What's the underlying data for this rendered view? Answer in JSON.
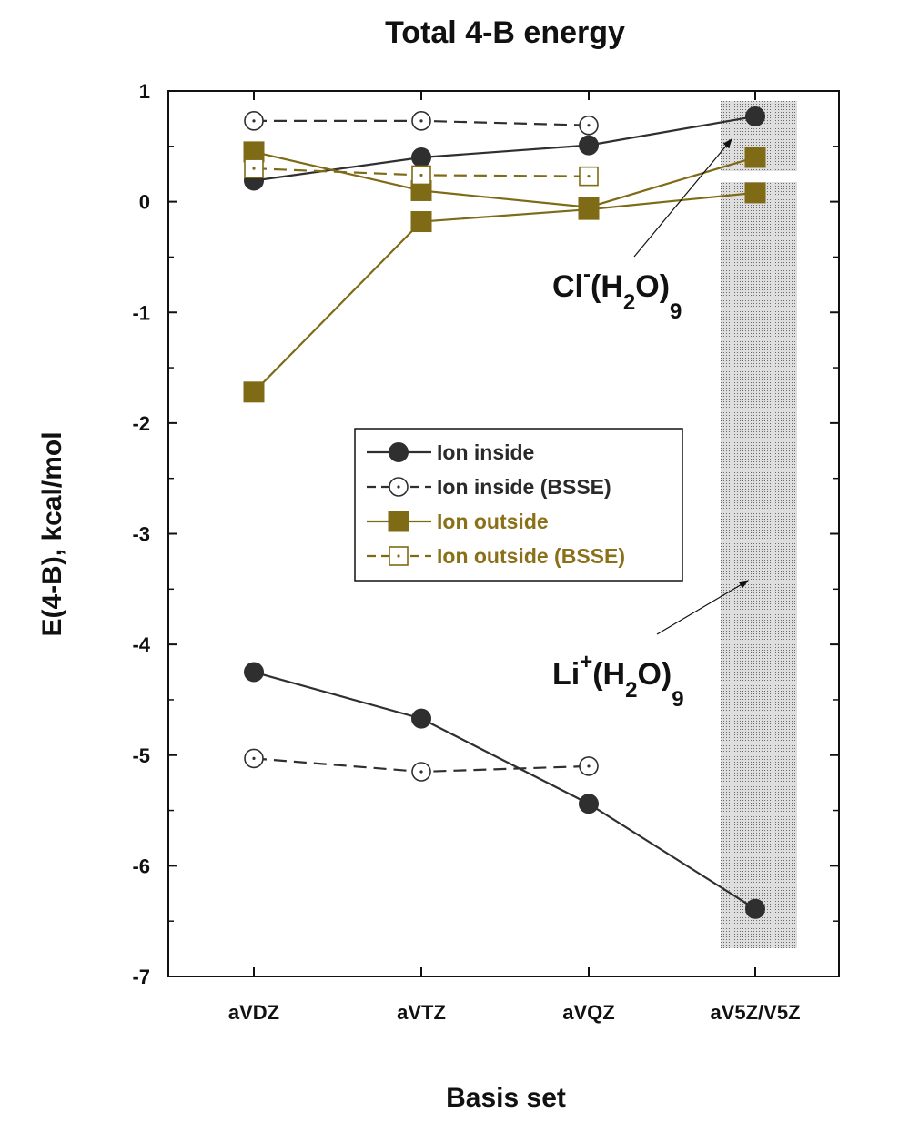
{
  "chart_data": {
    "type": "line",
    "title": "Total 4-B energy",
    "xlabel": "Basis set",
    "ylabel": "E(4-B), kcal/mol",
    "categories": [
      "aVDZ",
      "aVTZ",
      "aVQZ",
      "aV5Z/V5Z"
    ],
    "ylim": [
      -7,
      1
    ],
    "yticks": [
      1,
      0,
      -1,
      -2,
      -3,
      -4,
      -5,
      -6,
      -7
    ],
    "grid": false,
    "legend_position": "center",
    "legend": [
      {
        "label": "Ion inside",
        "style": "dark-filled-circle"
      },
      {
        "label": "Ion inside (BSSE)",
        "style": "dark-open-circle-dashed"
      },
      {
        "label": "Ion outside",
        "style": "olive-filled-square"
      },
      {
        "label": "Ion outside (BSSE)",
        "style": "olive-open-square-dashed"
      }
    ],
    "colors": {
      "dark": "#2f2f2f",
      "olive": "#7f6a16",
      "olive_text": "#8a7018",
      "shade": "#d6d6d6"
    },
    "series": [
      {
        "group": "Cl-(H2O)9",
        "kind": "Ion inside",
        "color": "dark",
        "marker": "filled-circle",
        "dashed": false,
        "values": [
          0.19,
          0.4,
          0.51,
          0.77
        ]
      },
      {
        "group": "Cl-(H2O)9",
        "kind": "Ion inside (BSSE)",
        "color": "dark",
        "marker": "open-circle",
        "dashed": true,
        "values": [
          0.73,
          0.73,
          0.69,
          null
        ]
      },
      {
        "group": "Cl-(H2O)9",
        "kind": "Ion outside",
        "color": "olive",
        "marker": "filled-square",
        "dashed": false,
        "values": [
          0.45,
          0.1,
          -0.05,
          0.4
        ]
      },
      {
        "group": "Cl-(H2O)9",
        "kind": "Ion outside (BSSE)",
        "color": "olive",
        "marker": "open-square",
        "dashed": true,
        "values": [
          0.3,
          0.24,
          0.23,
          null
        ]
      },
      {
        "group": "Li+(H2O)9",
        "kind": "Ion outside",
        "color": "olive",
        "marker": "filled-square",
        "dashed": false,
        "values": [
          -1.72,
          -0.18,
          -0.07,
          0.08
        ]
      },
      {
        "group": "Li+(H2O)9",
        "kind": "Ion inside",
        "color": "dark",
        "marker": "filled-circle",
        "dashed": false,
        "values": [
          -4.25,
          -4.67,
          -5.44,
          -6.39
        ]
      },
      {
        "group": "Li+(H2O)9",
        "kind": "Ion inside (BSSE)",
        "color": "dark",
        "marker": "open-circle",
        "dashed": true,
        "values": [
          -5.03,
          -5.15,
          -5.1,
          null
        ]
      }
    ],
    "annotations": [
      {
        "base": "Cl",
        "sup": "-",
        "mid": "(H",
        "sub1": "2",
        "tail": "O)",
        "sub2": "9"
      },
      {
        "base": "Li",
        "sup": "+",
        "mid": "(H",
        "sub1": "2",
        "tail": "O)",
        "sub2": "9"
      }
    ]
  }
}
